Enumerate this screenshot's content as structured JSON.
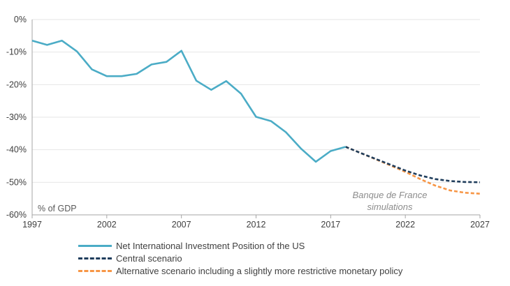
{
  "chart_data": {
    "type": "line",
    "title": "",
    "xlabel": "",
    "ylabel": "% of GDP",
    "xlim": [
      1997,
      2027
    ],
    "ylim": [
      -60,
      0
    ],
    "x_ticks": [
      "1997",
      "2002",
      "2007",
      "2012",
      "2017",
      "2022",
      "2027"
    ],
    "y_ticks": [
      "0%",
      "-10%",
      "-20%",
      "-30%",
      "-40%",
      "-50%",
      "-60%"
    ],
    "series": [
      {
        "name": "Net International Investment Position of the US",
        "color": "#4bacc6",
        "style": "solid",
        "x": [
          1997,
          1998,
          1999,
          2000,
          2001,
          2002,
          2003,
          2004,
          2005,
          2006,
          2007,
          2008,
          2009,
          2010,
          2011,
          2012,
          2013,
          2014,
          2015,
          2016,
          2017,
          2018
        ],
        "values": [
          -6.5,
          -7.8,
          -6.5,
          -9.8,
          -15.3,
          -17.4,
          -17.4,
          -16.7,
          -13.8,
          -13.0,
          -9.6,
          -18.8,
          -21.6,
          -18.9,
          -22.8,
          -29.9,
          -31.2,
          -34.6,
          -39.6,
          -43.7,
          -40.4,
          -39.1
        ]
      },
      {
        "name": "Central scenario",
        "color": "#1f3d5c",
        "style": "dashed",
        "x": [
          2018,
          2019,
          2020,
          2021,
          2022,
          2023,
          2024,
          2025,
          2026,
          2027
        ],
        "values": [
          -39.1,
          -41.0,
          -42.8,
          -44.6,
          -46.4,
          -47.9,
          -49.0,
          -49.6,
          -49.9,
          -50.0
        ]
      },
      {
        "name": "Alternative scenario including a slightly more restrictive monetary policy",
        "color": "#f79646",
        "style": "dashed",
        "x": [
          2018,
          2019,
          2020,
          2021,
          2022,
          2023,
          2024,
          2025,
          2026,
          2027
        ],
        "values": [
          -39.1,
          -41.0,
          -42.9,
          -44.8,
          -46.8,
          -49.0,
          -51.0,
          -52.5,
          -53.2,
          -53.5
        ]
      }
    ],
    "annotations": [
      "Banque de France",
      "simulations"
    ]
  }
}
